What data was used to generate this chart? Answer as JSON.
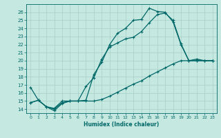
{
  "xlabel": "Humidex (Indice chaleur)",
  "bg_color": "#c5e8e0",
  "grid_color": "#a8d0c8",
  "line_color": "#006868",
  "xlim": [
    -0.5,
    23.5
  ],
  "ylim": [
    13.5,
    27.0
  ],
  "yticks": [
    14,
    15,
    16,
    17,
    18,
    19,
    20,
    21,
    22,
    23,
    24,
    25,
    26
  ],
  "xticks": [
    0,
    1,
    2,
    3,
    4,
    5,
    6,
    7,
    8,
    9,
    10,
    11,
    12,
    13,
    14,
    15,
    16,
    17,
    18,
    19,
    20,
    21,
    22,
    23
  ],
  "line1_x": [
    0,
    1,
    2,
    3,
    4,
    5,
    6,
    7,
    8,
    9,
    10,
    11,
    12,
    13,
    14,
    15,
    16,
    17,
    18,
    19,
    20,
    21,
    22,
    23
  ],
  "line1_y": [
    16.7,
    15.1,
    14.3,
    13.8,
    14.7,
    15.0,
    15.0,
    15.1,
    18.3,
    19.8,
    22.0,
    23.4,
    24.0,
    25.0,
    25.1,
    26.5,
    26.1,
    26.0,
    24.8,
    22.0,
    20.0,
    20.0,
    20.0,
    20.0
  ],
  "line2_x": [
    0,
    1,
    2,
    3,
    4,
    5,
    6,
    7,
    8,
    9,
    10,
    11,
    12,
    13,
    14,
    15,
    16,
    17,
    18,
    19,
    20,
    21,
    22,
    23
  ],
  "line2_y": [
    14.8,
    15.1,
    14.3,
    14.1,
    15.0,
    15.0,
    15.0,
    16.8,
    17.9,
    20.2,
    21.7,
    22.2,
    22.7,
    22.9,
    23.6,
    24.7,
    25.7,
    25.9,
    25.0,
    22.1,
    20.0,
    20.2,
    20.0,
    20.0
  ],
  "line3_x": [
    0,
    1,
    2,
    3,
    4,
    5,
    6,
    7,
    8,
    9,
    10,
    11,
    12,
    13,
    14,
    15,
    16,
    17,
    18,
    19,
    20,
    21,
    22,
    23
  ],
  "line3_y": [
    14.8,
    15.1,
    14.3,
    14.0,
    14.8,
    15.0,
    15.0,
    15.0,
    15.0,
    15.2,
    15.6,
    16.1,
    16.6,
    17.1,
    17.5,
    18.1,
    18.6,
    19.1,
    19.6,
    20.0,
    20.0,
    20.0,
    20.0,
    20.0
  ]
}
